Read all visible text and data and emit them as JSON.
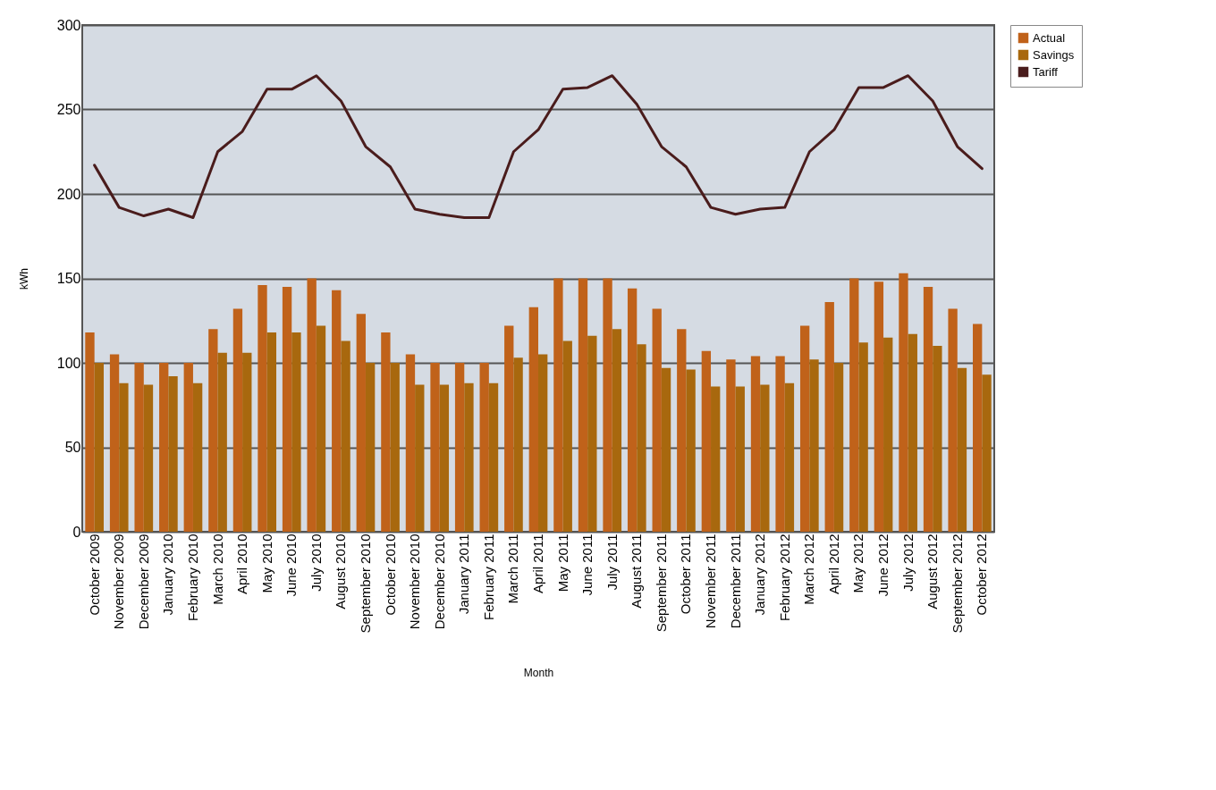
{
  "chart_data": {
    "type": "bar",
    "xlabel": "Month",
    "ylabel": "kWh",
    "categories": [
      "October 2009",
      "November 2009",
      "December 2009",
      "January 2010",
      "February 2010",
      "March 2010",
      "April 2010",
      "May 2010",
      "June 2010",
      "July 2010",
      "August 2010",
      "September 2010",
      "October 2010",
      "November 2010",
      "December 2010",
      "January 2011",
      "February 2011",
      "March 2011",
      "April 2011",
      "May 2011",
      "June 2011",
      "July 2011",
      "August 2011",
      "September 2011",
      "October 2011",
      "November 2011",
      "December 2011",
      "January 2012",
      "February 2012",
      "March 2012",
      "April 2012",
      "May 2012",
      "June 2012",
      "July 2012",
      "August 2012",
      "September 2012",
      "October 2012"
    ],
    "series": [
      {
        "name": "Actual",
        "color": "#c0621a",
        "values": [
          118,
          105,
          100,
          100,
          100,
          120,
          132,
          146,
          145,
          150,
          143,
          129,
          118,
          105,
          100,
          100,
          100,
          122,
          133,
          150,
          150,
          150,
          144,
          132,
          120,
          107,
          102,
          104,
          104,
          122,
          136,
          150,
          148,
          153,
          145,
          132,
          123
        ]
      },
      {
        "name": "Savings",
        "color": "#a8680e",
        "values": [
          100,
          88,
          87,
          92,
          88,
          106,
          106,
          118,
          118,
          122,
          113,
          100,
          100,
          87,
          87,
          88,
          88,
          103,
          105,
          113,
          116,
          120,
          111,
          97,
          96,
          86,
          86,
          87,
          88,
          102,
          100,
          112,
          115,
          117,
          110,
          97,
          93
        ]
      },
      {
        "name": "Tariff",
        "type": "line",
        "color": "#4a1c1c",
        "values": [
          217,
          192,
          187,
          191,
          186,
          225,
          237,
          262,
          262,
          270,
          255,
          228,
          216,
          191,
          188,
          186,
          186,
          225,
          238,
          262,
          263,
          270,
          253,
          228,
          216,
          192,
          188,
          191,
          192,
          225,
          238,
          263,
          263,
          270,
          255,
          228,
          215
        ]
      }
    ],
    "ylim": [
      0,
      300
    ],
    "yticks": [
      0,
      50,
      100,
      150,
      200,
      250,
      300
    ],
    "grid": "y",
    "legend": "right"
  }
}
